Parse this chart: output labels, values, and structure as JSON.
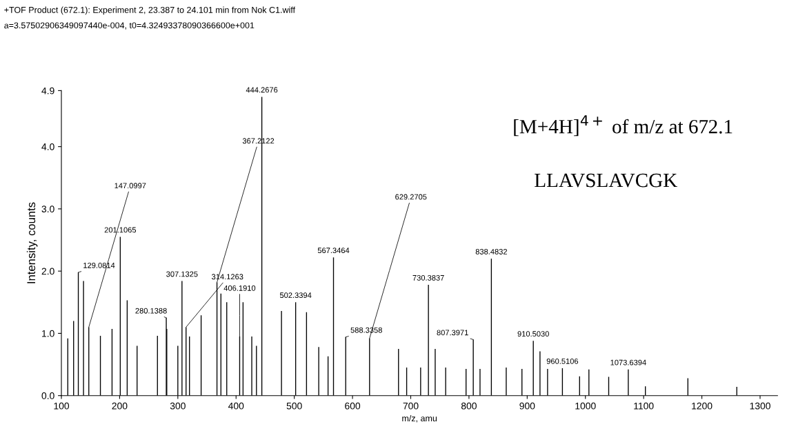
{
  "chart_data": {
    "type": "bar",
    "title": "+TOF Product (672.1): Experiment 2, 23.387 to 24.101 min from Nok C1.wiff",
    "subtitle": "a=3.57502906349097440e-004, t0=4.32493378090366600e+001",
    "xlabel": "m/z, amu",
    "ylabel": "Intensity, counts",
    "x": [
      111,
      121,
      129.0814,
      138,
      147.0997,
      167,
      187,
      201.1065,
      213,
      230,
      265,
      280.1388,
      281,
      300,
      307.1325,
      314.1263,
      320,
      340,
      367.2122,
      374,
      384,
      406.191,
      412,
      427,
      435,
      444.2676,
      478,
      502.3394,
      521,
      542,
      558,
      567.3464,
      588.3358,
      629.2705,
      679,
      693,
      717,
      730.3837,
      742,
      760,
      795,
      807.3971,
      819,
      838.4832,
      864,
      891,
      910.503,
      922,
      935,
      960.5106,
      990,
      1006,
      1040,
      1073.6394,
      1103,
      1176,
      1260
    ],
    "values": [
      0.92,
      1.2,
      1.98,
      1.84,
      1.1,
      0.96,
      1.07,
      2.55,
      1.53,
      0.8,
      0.96,
      1.25,
      1.07,
      0.8,
      1.84,
      1.1,
      0.95,
      1.29,
      1.82,
      1.64,
      1.5,
      0.95,
      1.5,
      0.95,
      0.8,
      4.8,
      1.36,
      1.5,
      1.34,
      0.78,
      0.63,
      2.22,
      0.94,
      0.92,
      0.75,
      0.45,
      0.45,
      1.78,
      0.75,
      0.45,
      0.43,
      0.9,
      0.43,
      2.2,
      0.45,
      0.43,
      0.88,
      0.71,
      0.43,
      0.44,
      0.31,
      0.42,
      0.3,
      0.42,
      0.15,
      0.28,
      0.14
    ],
    "color": "#000000",
    "xlim": [
      100,
      1330
    ],
    "xticks": [
      100,
      200,
      300,
      400,
      500,
      600,
      700,
      800,
      900,
      1000,
      1100,
      1200,
      1300
    ],
    "ylim": [
      0,
      4.9
    ],
    "yticks": [
      {
        "value": 0,
        "label": "0.0"
      },
      {
        "value": 1,
        "label": "1.0"
      },
      {
        "value": 2,
        "label": "2.0"
      },
      {
        "value": 3,
        "label": "3.0"
      },
      {
        "value": 4,
        "label": "4.0"
      },
      4.9
    ],
    "grid": false,
    "legend": false,
    "annotations": [
      {
        "text": "129.0814",
        "x": 129.0814,
        "y": 1.98
      },
      {
        "text": "147.0997",
        "x": 147.0997,
        "y": 1.1
      },
      {
        "text": "201.1065",
        "x": 201.1065,
        "y": 2.55
      },
      {
        "text": "280.1388",
        "x": 280.1388,
        "y": 1.25
      },
      {
        "text": "307.1325",
        "x": 307.1325,
        "y": 1.84
      },
      {
        "text": "314.1263",
        "x": 314.1263,
        "y": 1.1
      },
      {
        "text": "367.2122",
        "x": 367.2122,
        "y": 1.82
      },
      {
        "text": "406.1910",
        "x": 406.191,
        "y": 0.95
      },
      {
        "text": "444.2676",
        "x": 444.2676,
        "y": 4.8
      },
      {
        "text": "502.3394",
        "x": 502.3394,
        "y": 1.5
      },
      {
        "text": "567.3464",
        "x": 567.3464,
        "y": 2.22
      },
      {
        "text": "588.3358",
        "x": 588.3358,
        "y": 0.94
      },
      {
        "text": "629.2705",
        "x": 629.2705,
        "y": 0.92
      },
      {
        "text": "730.3837",
        "x": 730.3837,
        "y": 1.78
      },
      {
        "text": "807.3971",
        "x": 807.3971,
        "y": 0.9
      },
      {
        "text": "838.4832",
        "x": 838.4832,
        "y": 2.2
      },
      {
        "text": "910.5030",
        "x": 910.503,
        "y": 0.88
      },
      {
        "text": "960.5106",
        "x": 960.5106,
        "y": 0.44
      },
      {
        "text": "1073.6394",
        "x": 1073.6394,
        "y": 0.42
      },
      "[M+4H]$^{4+}$ of m/z at 672.1",
      "LLAVSLAVCGK"
    ]
  }
}
